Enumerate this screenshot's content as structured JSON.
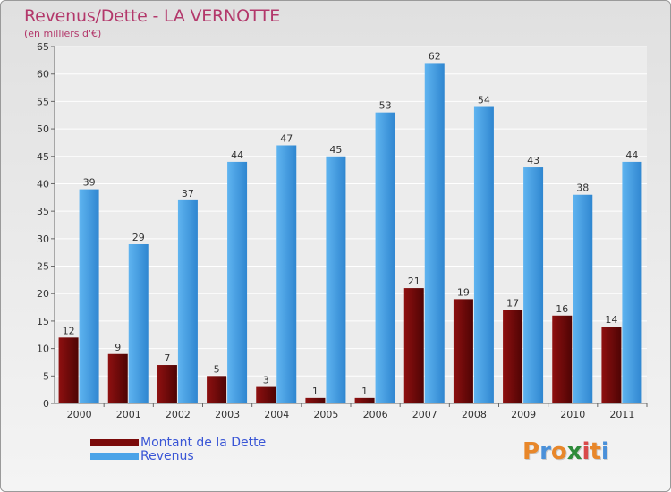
{
  "chart_data": {
    "type": "bar",
    "title": "Revenus/Dette - LA VERNOTTE",
    "subtitle": "(en milliers d'€)",
    "categories": [
      "2000",
      "2001",
      "2002",
      "2003",
      "2004",
      "2005",
      "2006",
      "2007",
      "2008",
      "2009",
      "2010",
      "2011"
    ],
    "series": [
      {
        "name": "Montant de la Dette",
        "color": "#7a0a0a",
        "values": [
          12,
          9,
          7,
          5,
          3,
          1,
          1,
          21,
          19,
          17,
          16,
          14
        ]
      },
      {
        "name": "Revenus",
        "color": "#4aa3e8",
        "values": [
          39,
          29,
          37,
          44,
          47,
          45,
          53,
          62,
          54,
          43,
          38,
          44
        ]
      }
    ],
    "ylim": [
      0,
      65
    ],
    "yticks": [
      0,
      5,
      10,
      15,
      20,
      25,
      30,
      35,
      40,
      45,
      50,
      55,
      60,
      65
    ],
    "grid": true,
    "legend_position": "bottom-left"
  },
  "logo": {
    "letters": [
      "P",
      "r",
      "o",
      "x",
      "i",
      "t",
      "i"
    ],
    "colors": [
      "#e8872a",
      "#4a90d9",
      "#e8872a",
      "#2e8b3a",
      "#d94a4a",
      "#e8872a",
      "#4a90d9"
    ]
  }
}
